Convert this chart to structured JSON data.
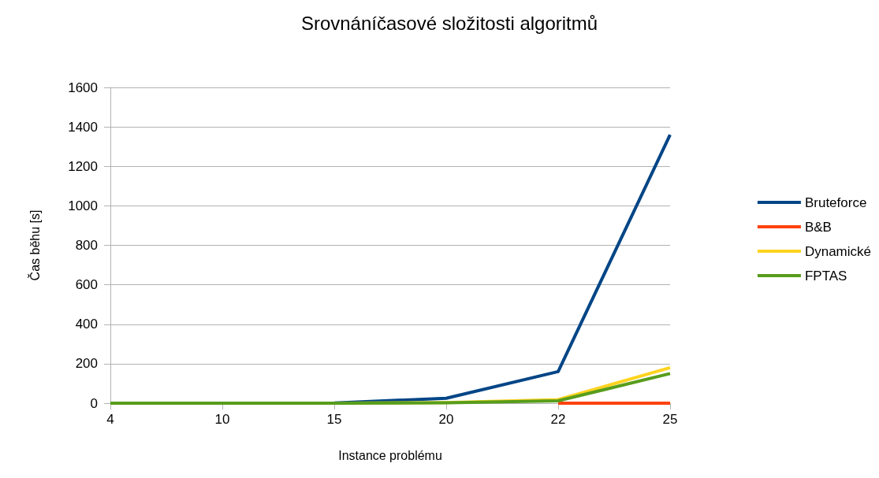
{
  "chart_data": {
    "type": "line",
    "title": "Srovnáníčasové složitosti algoritmů",
    "xlabel": "Instance problému",
    "ylabel": "Čas běhu [s]",
    "categories": [
      "4",
      "10",
      "15",
      "20",
      "22",
      "25"
    ],
    "series": [
      {
        "name": "Bruteforce",
        "color": "#004586",
        "values": [
          0,
          0,
          1,
          25,
          160,
          1360
        ]
      },
      {
        "name": "B&B",
        "color": "#ff420e",
        "values": [
          null,
          null,
          null,
          null,
          0,
          0
        ]
      },
      {
        "name": "Dynamické",
        "color": "#ffd320",
        "values": [
          null,
          null,
          0,
          3,
          18,
          180
        ]
      },
      {
        "name": "FPTAS",
        "color": "#579d1c",
        "values": [
          0,
          0,
          0,
          2,
          12,
          150
        ]
      }
    ],
    "ylim": [
      0,
      1600
    ],
    "yticks": [
      0,
      200,
      400,
      600,
      800,
      1000,
      1200,
      1400,
      1600
    ],
    "grid": "y",
    "legend": "right",
    "marker": "none"
  }
}
